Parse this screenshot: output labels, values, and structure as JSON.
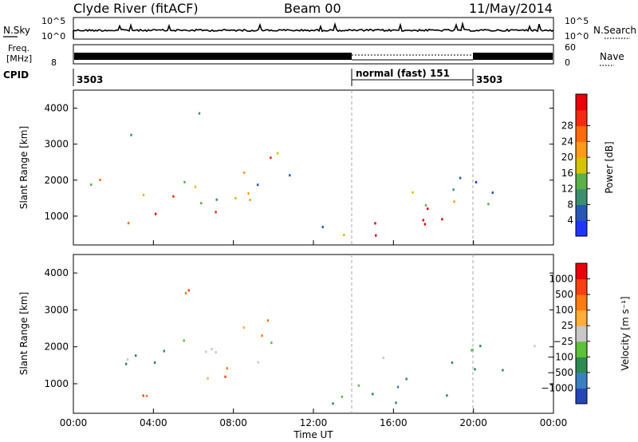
{
  "header": {
    "station": "Clyde River (fitACF)",
    "beam": "Beam 00",
    "date": "11/May/2014"
  },
  "noise_panel": {
    "left_label": "N.Sky",
    "left_ticks": [
      "10^5",
      "10^0"
    ],
    "right_ticks": [
      "10^5",
      "10^0"
    ],
    "right_label": "N.Search"
  },
  "freq_panel": {
    "left_label_1": "Freq.",
    "left_label_2": "[MHz]",
    "left_tick": "8",
    "right_ticks": [
      "60",
      "0"
    ],
    "right_label": "Nave"
  },
  "cpid": {
    "label": "CPID",
    "segments": [
      "3503",
      "normal (fast) 151",
      "3503"
    ]
  },
  "chart_data": [
    {
      "type": "heatmap",
      "title": "",
      "xlabel": "",
      "ylabel": "Slant Range [km]",
      "x_ticks": [
        "00:00",
        "04:00",
        "08:00",
        "12:00",
        "16:00",
        "20:00",
        "00:00"
      ],
      "y_ticks": [
        "1000",
        "2000",
        "3000",
        "4000"
      ],
      "ylim": [
        200,
        4500
      ],
      "colorbar": {
        "label": "Power [dB]",
        "ticks": [
          "4",
          "8",
          "12",
          "16",
          "20",
          "24",
          "28"
        ],
        "colors": [
          "#1f35ff",
          "#2a56b8",
          "#3b8f6f",
          "#5bb04c",
          "#d4c400",
          "#ff9a1a",
          "#ff6a0a",
          "#f52a10",
          "#e8000b"
        ]
      }
    },
    {
      "type": "heatmap",
      "title": "",
      "xlabel": "Time UT",
      "ylabel": "Slant Range [km]",
      "x_ticks": [
        "00:00",
        "04:00",
        "08:00",
        "12:00",
        "16:00",
        "20:00",
        "00:00"
      ],
      "y_ticks": [
        "1000",
        "2000",
        "3000",
        "4000"
      ],
      "ylim": [
        200,
        4500
      ],
      "colorbar": {
        "label": "Velocity [m s⁻¹]",
        "ticks": [
          "1000",
          "500",
          "100",
          "25",
          "−25",
          "−100",
          "−500",
          "−1000"
        ],
        "colors": [
          "#2646b8",
          "#3a7fc0",
          "#2c8a52",
          "#5fc03a",
          "#c8c8c8",
          "#ffae3a",
          "#ff7a10",
          "#f54010",
          "#e8000b"
        ]
      }
    }
  ]
}
